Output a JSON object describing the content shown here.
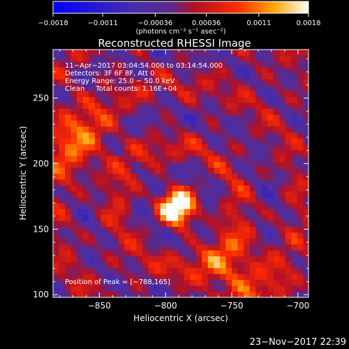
{
  "chart_data": {
    "type": "heatmap",
    "title": "Reconstructed RHESSI Image",
    "xlabel": "Heliocentric X (arcsec)",
    "ylabel": "Heliocentric Y (arcsec)",
    "xlim": [
      -885,
      -692
    ],
    "ylim": [
      98,
      287
    ],
    "x_ticks": [
      -850,
      -800,
      -750,
      -700
    ],
    "x_tick_labels": [
      "−850",
      "−800",
      "−750",
      "−700"
    ],
    "y_ticks": [
      100,
      150,
      200,
      250
    ],
    "y_tick_labels": [
      "100",
      "150",
      "200",
      "250"
    ],
    "colorbar": {
      "range": [
        -0.0018,
        0.0018
      ],
      "ticks": [
        -0.0018,
        -0.0011,
        -0.00036,
        0.00036,
        0.0011,
        0.0018
      ],
      "tick_labels": [
        "−0.0018",
        "−0.0011",
        "−0.00036",
        "0.00036",
        "0.0011",
        "0.0018"
      ],
      "units_label": "(photons cm⁻² s⁻¹ asec⁻²)"
    },
    "annotations": [
      "11−Apr−2017 03:04:54.000 to 03:14:54.000",
      "Detectors: 3F 6F 8F, Att 0",
      "Energy Range: 25.0 − 50.0 keV",
      "Clean     Total counts: 1.16E+04"
    ],
    "peak_label": "Position of Peak = [−788,165]",
    "peak": {
      "x": -788,
      "y": 165
    },
    "sources": [
      {
        "x": -791,
        "y": 167,
        "peak": 0.0018
      },
      {
        "x": -747,
        "y": 116,
        "peak": 0.0012
      },
      {
        "x": -866,
        "y": 218,
        "peak": 0.0011
      }
    ],
    "grid": false,
    "legend": "none"
  },
  "footer": {
    "date": "23−Nov−2017 22:39"
  }
}
